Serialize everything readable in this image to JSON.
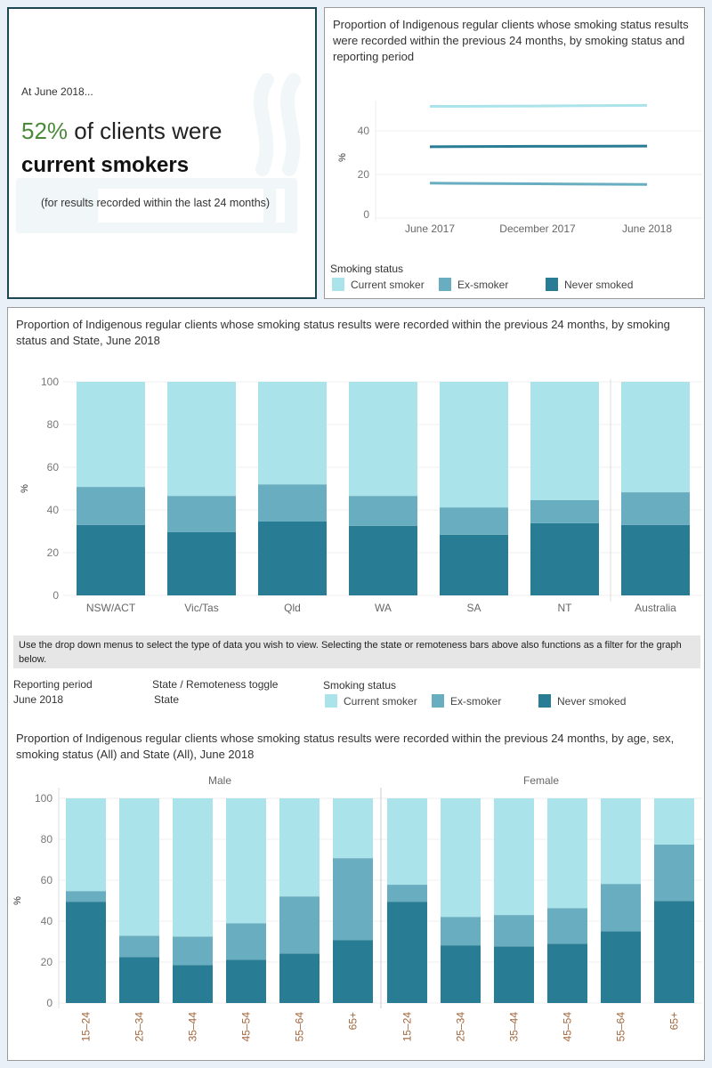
{
  "colors": {
    "current_smoker": "#abe3eb",
    "ex_smoker": "#69adc0",
    "never_smoked": "#287c94",
    "highlight": "#4a8a3a"
  },
  "kpi": {
    "at_label": "At June 2018...",
    "percent": "52%",
    "line1_rest": " of clients were",
    "line2": "current smokers",
    "note": "(for results recorded within the last 24 months)",
    "icon": "cigarette-smoke-icon"
  },
  "legend": {
    "title": "Smoking status",
    "items": [
      "Current smoker",
      "Ex-smoker",
      "Never smoked"
    ]
  },
  "controls": {
    "instructions": "Use the drop down menus to select the type of data you wish to view.  Selecting the state or remoteness bars above also functions as a filter for the graph below.",
    "reporting_period_label": "Reporting period",
    "reporting_period_value": "June 2018",
    "toggle_label": "State / Remoteness toggle",
    "toggle_value": "State"
  },
  "chart_data": [
    {
      "type": "line",
      "title": "Proportion of Indigenous regular clients whose smoking status results were recorded within the previous 24 months, by smoking status and reporting period",
      "ylabel": "%",
      "x": [
        "June 2017",
        "December 2017",
        "June 2018"
      ],
      "yticks": [
        0,
        20,
        40
      ],
      "ylim": [
        0,
        55
      ],
      "grid": true,
      "legend_placement": "bottom",
      "series": [
        {
          "name": "Current smoker",
          "values": [
            51.2,
            51.4,
            51.7
          ]
        },
        {
          "name": "Ex-smoker",
          "values": [
            16.0,
            15.7,
            15.4
          ]
        },
        {
          "name": "Never smoked",
          "values": [
            32.7,
            32.9,
            33.0
          ]
        }
      ]
    },
    {
      "type": "bar",
      "stacked": true,
      "title": "Proportion of Indigenous regular clients whose smoking status results were recorded within the previous 24 months, by smoking status and State, June 2018",
      "ylabel": "%",
      "ylim": [
        0,
        100
      ],
      "yticks": [
        0,
        20,
        40,
        60,
        80,
        100
      ],
      "grid": true,
      "categories": [
        "NSW/ACT",
        "Vic/Tas",
        "Qld",
        "WA",
        "SA",
        "NT",
        "Australia"
      ],
      "series": [
        {
          "name": "Never smoked",
          "values": [
            33.0,
            29.7,
            34.6,
            32.6,
            28.4,
            33.8,
            33.0
          ]
        },
        {
          "name": "Ex-smoker",
          "values": [
            17.8,
            16.9,
            17.4,
            14.0,
            12.8,
            10.8,
            15.3
          ]
        },
        {
          "name": "Current smoker",
          "values": [
            49.2,
            53.4,
            48.0,
            53.4,
            58.8,
            55.4,
            51.7
          ]
        }
      ]
    },
    {
      "type": "bar",
      "stacked": true,
      "title": "Proportion of Indigenous regular clients whose smoking status results were recorded within the previous 24 months, by age, sex, smoking status (All) and State (All), June 2018",
      "ylabel": "%",
      "ylim": [
        0,
        100
      ],
      "yticks": [
        0,
        20,
        40,
        60,
        80,
        100
      ],
      "grid": true,
      "panels": [
        "Male",
        "Female"
      ],
      "categories": [
        "15–24",
        "25–34",
        "35–44",
        "45–54",
        "55–64",
        "65+"
      ],
      "data": {
        "Male": {
          "Never smoked": [
            49.5,
            22.5,
            18.6,
            21.2,
            24.2,
            30.8
          ],
          "Ex-smoker": [
            5.2,
            10.4,
            13.9,
            17.8,
            27.9,
            40.0
          ],
          "Current smoker": [
            45.3,
            67.1,
            67.5,
            61.0,
            47.9,
            29.2
          ]
        },
        "Female": {
          "Never smoked": [
            49.5,
            28.2,
            27.7,
            29.0,
            35.1,
            49.9
          ],
          "Ex-smoker": [
            8.3,
            13.9,
            15.3,
            17.4,
            23.1,
            27.5
          ],
          "Current smoker": [
            42.2,
            57.9,
            57.0,
            53.6,
            41.8,
            22.6
          ]
        }
      }
    }
  ]
}
